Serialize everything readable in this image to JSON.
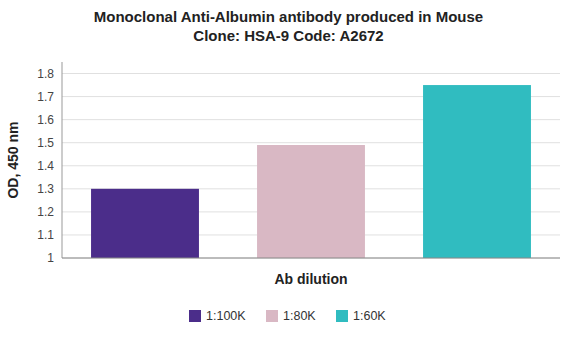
{
  "chart_data": {
    "type": "bar",
    "title": "Monoclonal Anti-Albumin antibody produced in Mouse",
    "subtitle": "Clone: HSA-9  Code: A2672",
    "categories": [
      "1:100K",
      "1:80K",
      "1:60K"
    ],
    "values": [
      1.3,
      1.49,
      1.75
    ],
    "colors": [
      "#4B2D8A",
      "#D9B8C4",
      "#30BCC0"
    ],
    "x_label": "Ab dilution",
    "y_label": "OD, 450 nm",
    "ylim": [
      1,
      1.85
    ],
    "yticks": [
      1,
      1.1,
      1.2,
      1.3,
      1.4,
      1.5,
      1.6,
      1.7,
      1.8
    ],
    "grid": true,
    "legend": "bottom",
    "tick_labels": "y"
  }
}
